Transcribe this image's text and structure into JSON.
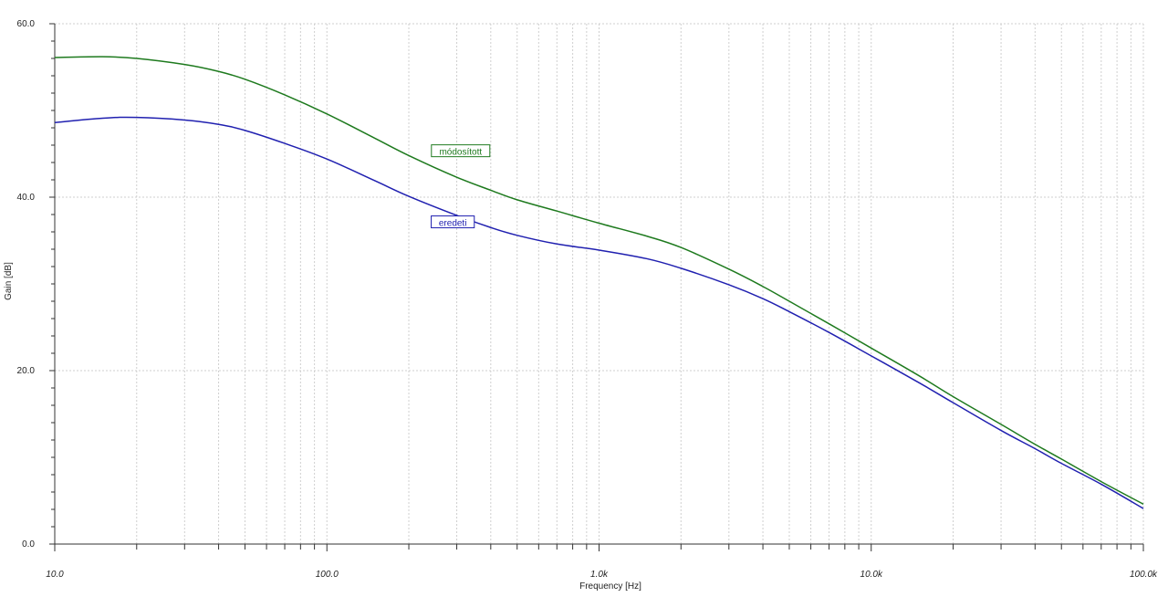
{
  "chart_data": {
    "type": "line",
    "xscale": "log",
    "xlabel": "Frequency [Hz]",
    "ylabel": "Gain [dB]",
    "xlim": [
      10,
      100000
    ],
    "ylim": [
      0,
      60
    ],
    "grid": true,
    "x_ticks": [
      {
        "value": 10,
        "label": "10.0"
      },
      {
        "value": 100,
        "label": "100.0"
      },
      {
        "value": 1000,
        "label": "1.0k"
      },
      {
        "value": 10000,
        "label": "10.0k"
      },
      {
        "value": 100000,
        "label": "100.0k"
      }
    ],
    "y_ticks": [
      {
        "value": 0,
        "label": "0.0"
      },
      {
        "value": 20,
        "label": "20.0"
      },
      {
        "value": 40,
        "label": "40.0"
      },
      {
        "value": 60,
        "label": "60.0"
      }
    ],
    "series": [
      {
        "name": "módosított",
        "color": "#1e7a1e",
        "label_at": {
          "x": 310,
          "y": 45.3
        },
        "points": [
          [
            10,
            56.1
          ],
          [
            15,
            56.2
          ],
          [
            20,
            56.0
          ],
          [
            30,
            55.3
          ],
          [
            40,
            54.5
          ],
          [
            50,
            53.6
          ],
          [
            70,
            51.8
          ],
          [
            100,
            49.6
          ],
          [
            150,
            46.8
          ],
          [
            200,
            44.8
          ],
          [
            300,
            42.3
          ],
          [
            400,
            40.8
          ],
          [
            500,
            39.7
          ],
          [
            700,
            38.4
          ],
          [
            1000,
            37.0
          ],
          [
            1500,
            35.5
          ],
          [
            2000,
            34.2
          ],
          [
            3000,
            31.7
          ],
          [
            4000,
            29.7
          ],
          [
            5000,
            28.0
          ],
          [
            7000,
            25.4
          ],
          [
            10000,
            22.6
          ],
          [
            15000,
            19.4
          ],
          [
            20000,
            17.0
          ],
          [
            30000,
            13.8
          ],
          [
            40000,
            11.5
          ],
          [
            50000,
            9.8
          ],
          [
            70000,
            7.2
          ],
          [
            100000,
            4.6
          ]
        ]
      },
      {
        "name": "eredeti",
        "color": "#2020b0",
        "label_at": {
          "x": 290,
          "y": 37.1
        },
        "points": [
          [
            10,
            48.6
          ],
          [
            15,
            49.1
          ],
          [
            20,
            49.2
          ],
          [
            30,
            48.9
          ],
          [
            40,
            48.4
          ],
          [
            50,
            47.7
          ],
          [
            70,
            46.2
          ],
          [
            100,
            44.4
          ],
          [
            150,
            41.9
          ],
          [
            200,
            40.1
          ],
          [
            300,
            37.9
          ],
          [
            400,
            36.5
          ],
          [
            500,
            35.6
          ],
          [
            700,
            34.6
          ],
          [
            1000,
            33.9
          ],
          [
            1500,
            32.9
          ],
          [
            2000,
            31.8
          ],
          [
            3000,
            29.9
          ],
          [
            4000,
            28.3
          ],
          [
            5000,
            26.8
          ],
          [
            7000,
            24.4
          ],
          [
            10000,
            21.7
          ],
          [
            15000,
            18.6
          ],
          [
            20000,
            16.3
          ],
          [
            30000,
            13.1
          ],
          [
            40000,
            11.0
          ],
          [
            50000,
            9.3
          ],
          [
            70000,
            6.9
          ],
          [
            100000,
            4.1
          ]
        ]
      }
    ]
  }
}
